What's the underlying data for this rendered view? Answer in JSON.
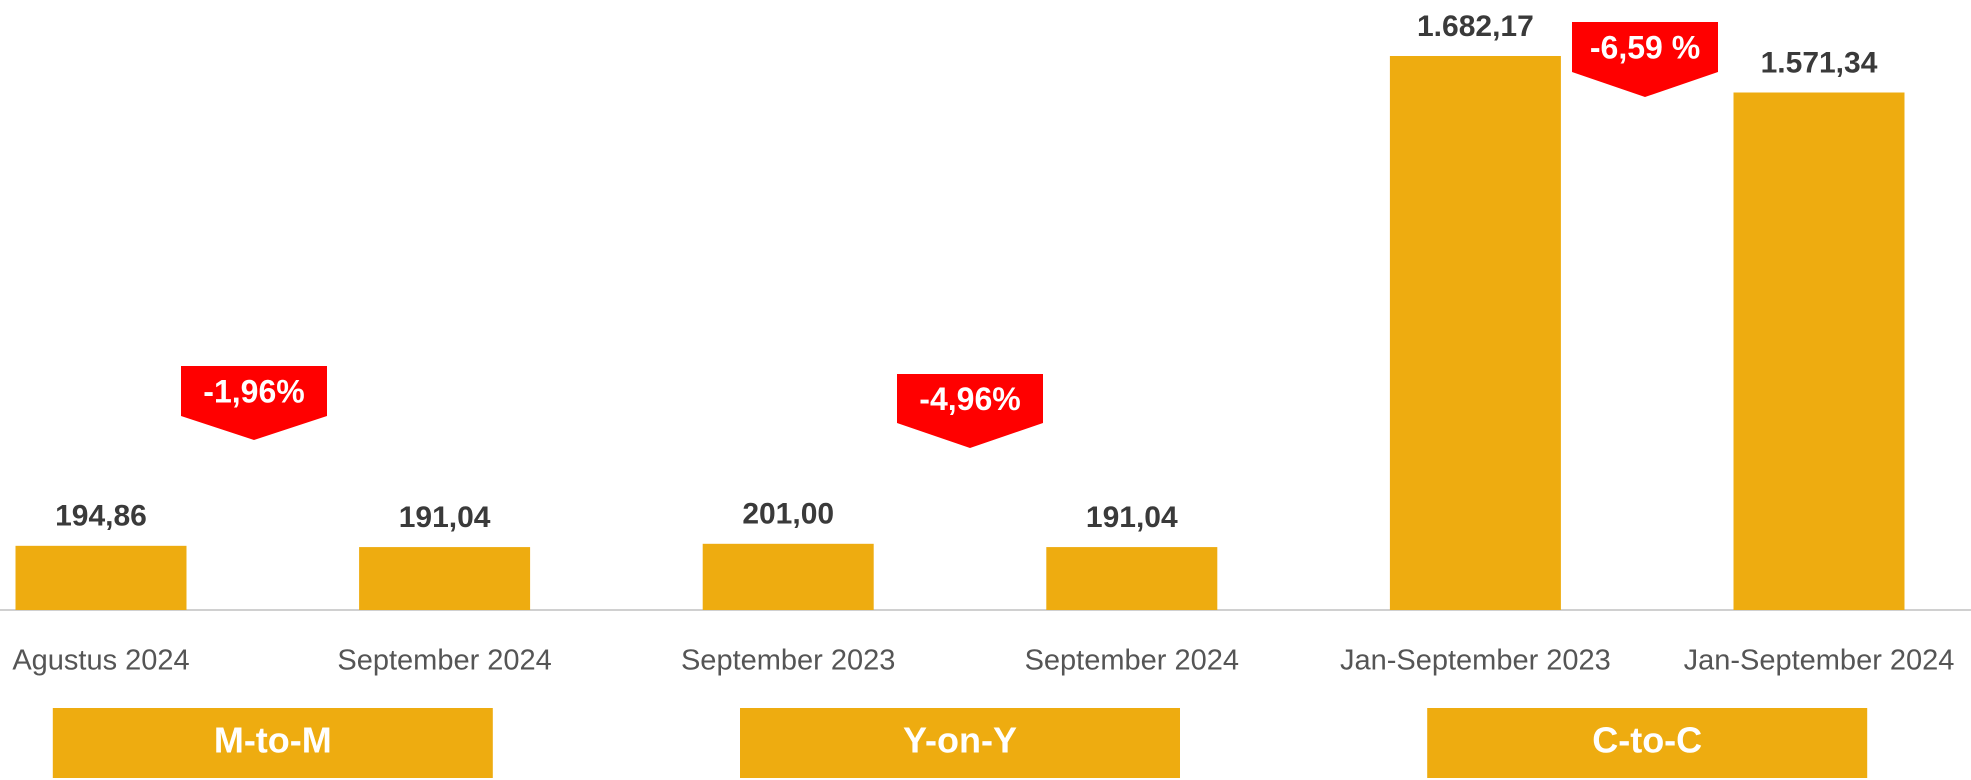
{
  "chart_data": {
    "type": "bar",
    "categories": [
      "Agustus 2024",
      "September 2024",
      "September 2023",
      "September 2024",
      "Jan-September 2023",
      "Jan-September 2024"
    ],
    "values": [
      194.86,
      191.04,
      201.0,
      191.04,
      1682.17,
      1571.34
    ],
    "value_labels": [
      "194,86",
      "191,04",
      "201,00",
      "191,04",
      "1.682,17",
      "1.571,34"
    ],
    "color": "#eeac10",
    "groups": [
      "M-to-M",
      "Y-on-Y",
      "C-to-C"
    ],
    "changes": [
      "-1,96%",
      "-4,96%",
      "-6,59 %"
    ],
    "change_color": "#ff0000"
  }
}
